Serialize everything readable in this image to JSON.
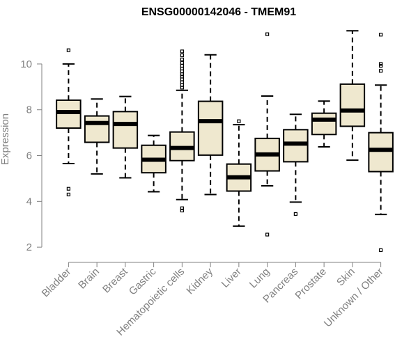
{
  "chart_data": {
    "type": "boxplot",
    "title": "ENSG00000142046 - TMEM91",
    "xlabel": "",
    "ylabel": "Expression",
    "ylim": [
      1.7,
      11.7
    ],
    "yticks": [
      2,
      4,
      6,
      8,
      10
    ],
    "box_fill": "#efe8cf",
    "line_color": "#000000",
    "axis_color": "#808080",
    "categories": [
      "Bladder",
      "Brain",
      "Breast",
      "Gastric",
      "Hematopoietic cells",
      "Kidney",
      "Liver",
      "Lung",
      "Pancreas",
      "Prostate",
      "Skin",
      "Unknown / Other"
    ],
    "series": [
      {
        "category": "Bladder",
        "whisker_low": 5.65,
        "q1": 7.2,
        "median": 7.9,
        "q3": 8.42,
        "whisker_high": 10.0,
        "outliers": [
          10.6,
          4.55,
          4.3
        ]
      },
      {
        "category": "Brain",
        "whisker_low": 5.2,
        "q1": 6.58,
        "median": 7.42,
        "q3": 7.73,
        "whisker_high": 8.47,
        "outliers": []
      },
      {
        "category": "Breast",
        "whisker_low": 5.03,
        "q1": 6.33,
        "median": 7.38,
        "q3": 7.92,
        "whisker_high": 8.58,
        "outliers": []
      },
      {
        "category": "Gastric",
        "whisker_low": 4.42,
        "q1": 5.25,
        "median": 5.82,
        "q3": 6.45,
        "whisker_high": 6.88,
        "outliers": []
      },
      {
        "category": "Hematopoietic cells",
        "whisker_low": 4.08,
        "q1": 5.78,
        "median": 6.33,
        "q3": 7.03,
        "whisker_high": 8.85,
        "outliers": [
          10.55,
          10.38,
          10.2,
          10.05,
          9.92,
          9.8,
          9.68,
          9.55,
          9.45,
          9.33,
          9.2,
          9.08,
          8.97,
          3.7,
          3.6
        ]
      },
      {
        "category": "Kidney",
        "whisker_low": 4.3,
        "q1": 6.02,
        "median": 7.5,
        "q3": 8.37,
        "whisker_high": 10.4,
        "outliers": []
      },
      {
        "category": "Liver",
        "whisker_low": 2.92,
        "q1": 4.45,
        "median": 5.05,
        "q3": 5.63,
        "whisker_high": 7.35,
        "outliers": [
          7.5
        ]
      },
      {
        "category": "Lung",
        "whisker_low": 4.68,
        "q1": 5.33,
        "median": 6.05,
        "q3": 6.75,
        "whisker_high": 8.6,
        "outliers": [
          11.3,
          2.55
        ]
      },
      {
        "category": "Pancreas",
        "whisker_low": 3.97,
        "q1": 5.73,
        "median": 6.52,
        "q3": 7.13,
        "whisker_high": 7.8,
        "outliers": [
          3.45
        ]
      },
      {
        "category": "Prostate",
        "whisker_low": 6.38,
        "q1": 6.92,
        "median": 7.57,
        "q3": 7.85,
        "whisker_high": 8.38,
        "outliers": []
      },
      {
        "category": "Skin",
        "whisker_low": 5.8,
        "q1": 7.28,
        "median": 7.97,
        "q3": 9.12,
        "whisker_high": 11.45,
        "outliers": []
      },
      {
        "category": "Unknown / Other",
        "whisker_low": 3.43,
        "q1": 5.3,
        "median": 6.25,
        "q3": 7.0,
        "whisker_high": 9.08,
        "outliers": [
          11.28,
          10.0,
          9.92,
          9.7,
          1.87
        ]
      }
    ]
  }
}
